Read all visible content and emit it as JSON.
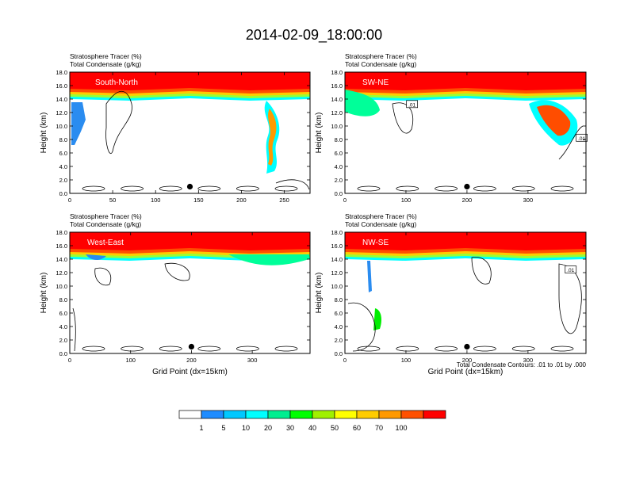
{
  "figure": {
    "title": "2014-02-09_18:00:00",
    "footnote": "Total Condensate Contours: .01 to .01 by .000",
    "colors": {
      "red": "#ff0000",
      "orange_red": "#ff4d00",
      "orange": "#ff9900",
      "gold": "#ffcc00",
      "yellow": "#ffff00",
      "yellow_green": "#99ff33",
      "green": "#00ee00",
      "spring_green": "#00ff99",
      "cyan": "#00ffff",
      "blue": "#2a8cf0"
    }
  },
  "chart_data": [
    {
      "type": "heatmap",
      "panel": "top-left",
      "label_line1": "Stratosphere Tracer   (%)",
      "label_line2": "Total Condensate   (g/kg)",
      "inset_label": "South-North",
      "ylabel": "Height (km)",
      "xlabel": "",
      "xlim": [
        0,
        280
      ],
      "ylim": [
        0,
        18
      ],
      "xticks": [
        0,
        50,
        100,
        150,
        200,
        250
      ],
      "yticks": [
        "0.0",
        "2.0",
        "4.0",
        "6.0",
        "8.0",
        "10.0",
        "12.0",
        "14.0",
        "16.0",
        "18.0"
      ],
      "marker": {
        "x": 140,
        "y": 1.0
      },
      "contour_boxes": []
    },
    {
      "type": "heatmap",
      "panel": "top-right",
      "label_line1": "Stratosphere Tracer   (%)",
      "label_line2": "Total Condensate   (g/kg)",
      "inset_label": "SW-NE",
      "ylabel": "Height (km)",
      "xlabel": "",
      "xlim": [
        0,
        395
      ],
      "ylim": [
        0,
        18
      ],
      "xticks": [
        0,
        100,
        200,
        300
      ],
      "yticks": [
        "0.0",
        "2.0",
        "4.0",
        "6.0",
        "8.0",
        "10.0",
        "12.0",
        "14.0",
        "16.0",
        "18.0"
      ],
      "marker": {
        "x": 200,
        "y": 1.0
      },
      "contour_boxes": [
        {
          "text": ".01",
          "x": 110,
          "y": 13.2
        },
        {
          "text": ".01",
          "x": 388,
          "y": 8.2
        }
      ]
    },
    {
      "type": "heatmap",
      "panel": "bottom-left",
      "label_line1": "Stratosphere Tracer   (%)",
      "label_line2": "Total Condensate   (g/kg)",
      "inset_label": "West-East",
      "ylabel": "Height (km)",
      "xlabel": "Grid Point (dx=15km)",
      "xlim": [
        0,
        395
      ],
      "ylim": [
        0,
        18
      ],
      "xticks": [
        0,
        100,
        200,
        300
      ],
      "yticks": [
        "0.0",
        "2.0",
        "4.0",
        "6.0",
        "8.0",
        "10.0",
        "12.0",
        "14.0",
        "16.0",
        "18.0"
      ],
      "marker": {
        "x": 200,
        "y": 1.0
      },
      "contour_boxes": []
    },
    {
      "type": "heatmap",
      "panel": "bottom-right",
      "label_line1": "Stratosphere Tracer   (%)",
      "label_line2": "Total Condensate   (g/kg)",
      "inset_label": "NW-SE",
      "ylabel": "Height (km)",
      "xlabel": "Grid Point (dx=15km)",
      "xlim": [
        0,
        395
      ],
      "ylim": [
        0,
        18
      ],
      "xticks": [
        0,
        100,
        200,
        300
      ],
      "yticks": [
        "0.0",
        "2.0",
        "4.0",
        "6.0",
        "8.0",
        "10.0",
        "12.0",
        "14.0",
        "16.0",
        "18.0"
      ],
      "marker": {
        "x": 200,
        "y": 1.0
      },
      "contour_boxes": [
        {
          "text": ".01",
          "x": 370,
          "y": 12.4
        }
      ]
    }
  ],
  "colorbar": {
    "labels": [
      "1",
      "5",
      "10",
      "20",
      "30",
      "40",
      "50",
      "60",
      "70",
      "100"
    ],
    "colors": [
      "#ffffff",
      "#1e8cff",
      "#00c8ff",
      "#00ffff",
      "#00ee90",
      "#00ff00",
      "#a0f000",
      "#ffff00",
      "#ffcc00",
      "#ff9900",
      "#ff5000",
      "#ff0000"
    ]
  }
}
